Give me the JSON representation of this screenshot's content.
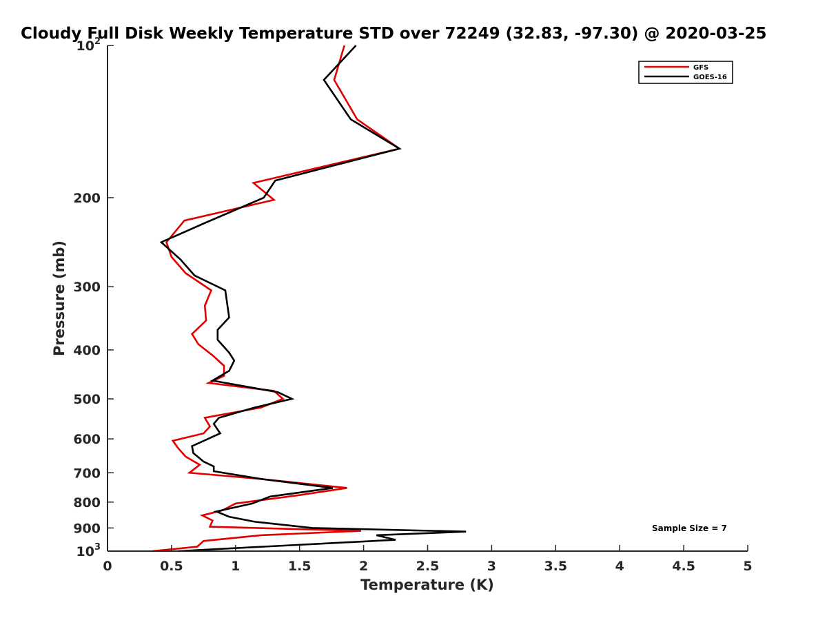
{
  "chart_data": {
    "type": "line",
    "title": "Cloudy Full Disk Weekly Temperature STD over 72249 (32.83, -97.30) @ 2020-03-25",
    "xlabel": "Temperature (K)",
    "ylabel": "Pressure (mb)",
    "xlim": [
      0,
      5
    ],
    "ylim": [
      100,
      1000
    ],
    "y_scale": "log",
    "y_reversed": true,
    "grid": false,
    "legend_position": "top-right",
    "x_ticks": [
      "0",
      "0.5",
      "1",
      "1.5",
      "2",
      "2.5",
      "3",
      "3.5",
      "4",
      "4.5",
      "5"
    ],
    "x_tick_values": [
      0,
      0.5,
      1,
      1.5,
      2,
      2.5,
      3,
      3.5,
      4,
      4.5,
      5
    ],
    "y_ticks": [
      {
        "value": 100,
        "base": "10",
        "exp": "2"
      },
      {
        "value": 200,
        "base": "200",
        "exp": ""
      },
      {
        "value": 300,
        "base": "300",
        "exp": ""
      },
      {
        "value": 400,
        "base": "400",
        "exp": ""
      },
      {
        "value": 500,
        "base": "500",
        "exp": ""
      },
      {
        "value": 600,
        "base": "600",
        "exp": ""
      },
      {
        "value": 700,
        "base": "700",
        "exp": ""
      },
      {
        "value": 800,
        "base": "800",
        "exp": ""
      },
      {
        "value": 900,
        "base": "900",
        "exp": ""
      },
      {
        "value": 1000,
        "base": "10",
        "exp": "3"
      }
    ],
    "annotation": "Sample Size = 7",
    "series": [
      {
        "name": "GFS",
        "color": "#e00000",
        "points": [
          [
            1.85,
            100
          ],
          [
            1.77,
            117
          ],
          [
            1.95,
            140
          ],
          [
            2.28,
            160
          ],
          [
            1.14,
            187
          ],
          [
            1.3,
            202
          ],
          [
            0.6,
            222
          ],
          [
            0.46,
            245
          ],
          [
            0.5,
            262
          ],
          [
            0.61,
            282
          ],
          [
            0.81,
            305
          ],
          [
            0.76,
            327
          ],
          [
            0.77,
            350
          ],
          [
            0.66,
            372
          ],
          [
            0.71,
            390
          ],
          [
            0.82,
            410
          ],
          [
            0.91,
            430
          ],
          [
            0.91,
            450
          ],
          [
            0.79,
            465
          ],
          [
            1.3,
            482
          ],
          [
            1.37,
            500
          ],
          [
            1.2,
            520
          ],
          [
            0.76,
            545
          ],
          [
            0.8,
            567
          ],
          [
            0.75,
            585
          ],
          [
            0.51,
            605
          ],
          [
            0.55,
            625
          ],
          [
            0.61,
            650
          ],
          [
            0.72,
            675
          ],
          [
            0.64,
            700
          ],
          [
            1.2,
            720
          ],
          [
            1.87,
            750
          ],
          [
            1.5,
            775
          ],
          [
            1.0,
            805
          ],
          [
            0.9,
            830
          ],
          [
            0.74,
            850
          ],
          [
            0.82,
            870
          ],
          [
            0.8,
            895
          ],
          [
            1.98,
            912
          ],
          [
            1.2,
            930
          ],
          [
            0.75,
            955
          ],
          [
            0.7,
            980
          ],
          [
            0.35,
            1000
          ]
        ]
      },
      {
        "name": "GOES-16",
        "color": "#000000",
        "points": [
          [
            1.94,
            100
          ],
          [
            1.69,
            117
          ],
          [
            1.9,
            140
          ],
          [
            2.28,
            160
          ],
          [
            1.31,
            185
          ],
          [
            1.22,
            200
          ],
          [
            0.75,
            225
          ],
          [
            0.42,
            245
          ],
          [
            0.57,
            265
          ],
          [
            0.68,
            285
          ],
          [
            0.92,
            305
          ],
          [
            0.95,
            345
          ],
          [
            0.86,
            365
          ],
          [
            0.86,
            382
          ],
          [
            0.95,
            405
          ],
          [
            0.99,
            420
          ],
          [
            0.95,
            440
          ],
          [
            0.82,
            460
          ],
          [
            1.33,
            485
          ],
          [
            1.44,
            500
          ],
          [
            1.15,
            520
          ],
          [
            0.87,
            545
          ],
          [
            0.83,
            560
          ],
          [
            0.88,
            585
          ],
          [
            0.66,
            620
          ],
          [
            0.67,
            640
          ],
          [
            0.75,
            665
          ],
          [
            0.83,
            680
          ],
          [
            0.83,
            695
          ],
          [
            1.2,
            720
          ],
          [
            1.76,
            750
          ],
          [
            1.27,
            780
          ],
          [
            1.13,
            805
          ],
          [
            0.85,
            835
          ],
          [
            0.95,
            855
          ],
          [
            1.15,
            875
          ],
          [
            1.6,
            900
          ],
          [
            2.8,
            915
          ],
          [
            2.1,
            930
          ],
          [
            2.25,
            950
          ],
          [
            0.55,
            1000
          ]
        ]
      }
    ]
  }
}
